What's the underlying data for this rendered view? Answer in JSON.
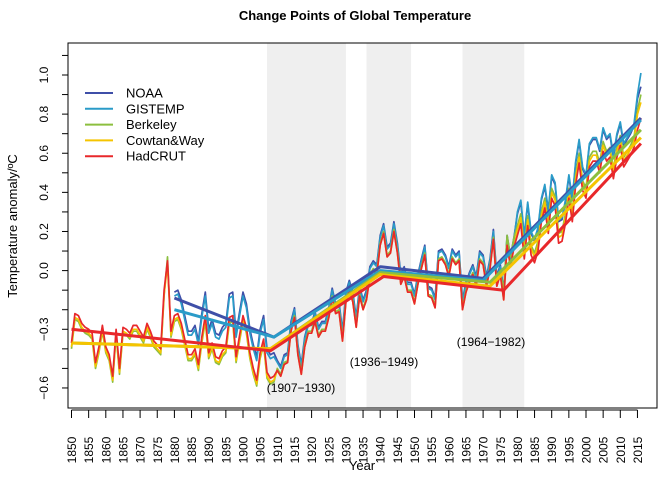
{
  "chart_data": {
    "type": "line",
    "title": "Change Points of Global Temperature",
    "xlabel": "Year",
    "ylabel": "Temperature anomaly/ºC",
    "xlim": [
      1850,
      2016
    ],
    "ylim": [
      -0.65,
      1.1
    ],
    "x_ticks": [
      1850,
      1855,
      1860,
      1865,
      1870,
      1875,
      1880,
      1885,
      1890,
      1895,
      1900,
      1905,
      1910,
      1915,
      1920,
      1925,
      1930,
      1935,
      1940,
      1945,
      1950,
      1955,
      1960,
      1965,
      1970,
      1975,
      1980,
      1985,
      1990,
      1995,
      2000,
      2005,
      2010,
      2015
    ],
    "y_ticks": [
      {
        "value": 1.0,
        "label": "1.0"
      },
      {
        "value": 0.8,
        "label": "0.8"
      },
      {
        "value": 0.6,
        "label": "0.6"
      },
      {
        "value": 0.4,
        "label": "0.4"
      },
      {
        "value": 0.2,
        "label": "0.2"
      },
      {
        "value": 0.0,
        "label": "0.0"
      },
      {
        "value": -0.3,
        "label": "−0.3"
      },
      {
        "value": -0.6,
        "label": "−0.6"
      }
    ],
    "grid": false,
    "legend_position": "top-left",
    "change_periods": [
      {
        "start": 1907,
        "end": 1930,
        "label": "(1907−1930)"
      },
      {
        "start": 1936,
        "end": 1949,
        "label": "(1936−1949)"
      },
      {
        "start": 1964,
        "end": 1982,
        "label": "(1964−1982)"
      }
    ],
    "series": [
      {
        "name": "NOAA",
        "color": "#3f4fa8",
        "start_year": 1880,
        "values": [
          -0.11,
          -0.1,
          -0.15,
          -0.23,
          -0.31,
          -0.31,
          -0.28,
          -0.36,
          -0.22,
          -0.11,
          -0.3,
          -0.25,
          -0.32,
          -0.33,
          -0.29,
          -0.27,
          -0.12,
          -0.11,
          -0.32,
          -0.21,
          -0.11,
          -0.17,
          -0.3,
          -0.38,
          -0.44,
          -0.3,
          -0.23,
          -0.4,
          -0.43,
          -0.42,
          -0.46,
          -0.49,
          -0.43,
          -0.42,
          -0.26,
          -0.19,
          -0.38,
          -0.48,
          -0.34,
          -0.27,
          -0.27,
          -0.21,
          -0.29,
          -0.26,
          -0.26,
          -0.19,
          -0.09,
          -0.17,
          -0.16,
          -0.31,
          -0.11,
          -0.05,
          -0.11,
          -0.24,
          -0.08,
          -0.15,
          -0.1,
          0.02,
          0.05,
          0.03,
          0.18,
          0.24,
          0.12,
          0.14,
          0.25,
          0.14,
          -0.02,
          0.02,
          -0.06,
          -0.06,
          -0.12,
          -0.02,
          0.06,
          0.13,
          -0.08,
          -0.09,
          -0.14,
          0.1,
          0.11,
          0.08,
          0.02,
          0.11,
          0.08,
          0.1,
          -0.15,
          -0.06,
          -0.01,
          0.03,
          -0.03,
          0.1,
          0.08,
          -0.03,
          0.06,
          0.21,
          -0.03,
          0.03,
          -0.1,
          0.18,
          0.07,
          0.17,
          0.29,
          0.35,
          0.17,
          0.34,
          0.19,
          0.15,
          0.21,
          0.36,
          0.43,
          0.3,
          0.48,
          0.44,
          0.25,
          0.26,
          0.35,
          0.48,
          0.36,
          0.55,
          0.66,
          0.52,
          0.48,
          0.64,
          0.67,
          0.67,
          0.61,
          0.72,
          0.67,
          0.69,
          0.58,
          0.69,
          0.75,
          0.64,
          0.67,
          0.7,
          0.74,
          0.88,
          0.94
        ],
        "fit": [
          [
            1880,
            -0.14
          ],
          [
            1909,
            -0.34
          ],
          [
            1940,
            0.02
          ],
          [
            1970,
            -0.04
          ],
          [
            2016,
            0.78
          ]
        ]
      },
      {
        "name": "GISTEMP",
        "color": "#2a9bc8",
        "start_year": 1880,
        "values": [
          -0.13,
          -0.12,
          -0.17,
          -0.25,
          -0.33,
          -0.33,
          -0.3,
          -0.38,
          -0.24,
          -0.13,
          -0.32,
          -0.27,
          -0.34,
          -0.35,
          -0.31,
          -0.29,
          -0.14,
          -0.13,
          -0.34,
          -0.23,
          -0.13,
          -0.19,
          -0.32,
          -0.4,
          -0.46,
          -0.32,
          -0.25,
          -0.42,
          -0.45,
          -0.44,
          -0.47,
          -0.5,
          -0.44,
          -0.43,
          -0.27,
          -0.2,
          -0.39,
          -0.49,
          -0.35,
          -0.28,
          -0.28,
          -0.22,
          -0.3,
          -0.27,
          -0.27,
          -0.2,
          -0.1,
          -0.18,
          -0.17,
          -0.32,
          -0.12,
          -0.06,
          -0.12,
          -0.25,
          -0.09,
          -0.16,
          -0.11,
          0.01,
          0.04,
          0.02,
          0.17,
          0.23,
          0.11,
          0.13,
          0.24,
          0.13,
          -0.03,
          0.01,
          -0.07,
          -0.07,
          -0.13,
          -0.03,
          0.05,
          0.12,
          -0.09,
          -0.1,
          -0.15,
          0.09,
          0.1,
          0.07,
          0.01,
          0.1,
          0.07,
          0.09,
          -0.16,
          -0.07,
          -0.02,
          0.02,
          -0.04,
          0.09,
          0.07,
          -0.04,
          0.05,
          0.2,
          -0.04,
          0.02,
          -0.11,
          0.17,
          0.06,
          0.16,
          0.3,
          0.36,
          0.18,
          0.35,
          0.2,
          0.16,
          0.22,
          0.37,
          0.44,
          0.31,
          0.49,
          0.45,
          0.26,
          0.27,
          0.36,
          0.49,
          0.37,
          0.56,
          0.67,
          0.53,
          0.49,
          0.65,
          0.68,
          0.68,
          0.62,
          0.73,
          0.68,
          0.7,
          0.59,
          0.7,
          0.76,
          0.65,
          0.68,
          0.71,
          0.75,
          0.9,
          1.01
        ],
        "fit": [
          [
            1880,
            -0.2
          ],
          [
            1909,
            -0.34
          ],
          [
            1940,
            0.0
          ],
          [
            1970,
            -0.05
          ],
          [
            2016,
            0.77
          ]
        ]
      },
      {
        "name": "Berkeley",
        "color": "#8cbf3f",
        "start_year": 1850,
        "values": [
          -0.4,
          -0.25,
          -0.26,
          -0.3,
          -0.32,
          -0.33,
          -0.35,
          -0.5,
          -0.42,
          -0.31,
          -0.42,
          -0.46,
          -0.57,
          -0.33,
          -0.53,
          -0.32,
          -0.33,
          -0.35,
          -0.31,
          -0.31,
          -0.34,
          -0.37,
          -0.3,
          -0.34,
          -0.39,
          -0.41,
          -0.43,
          -0.13,
          0.07,
          -0.34,
          -0.26,
          -0.25,
          -0.3,
          -0.38,
          -0.46,
          -0.46,
          -0.43,
          -0.51,
          -0.37,
          -0.26,
          -0.45,
          -0.4,
          -0.47,
          -0.48,
          -0.44,
          -0.42,
          -0.27,
          -0.26,
          -0.47,
          -0.36,
          -0.26,
          -0.32,
          -0.45,
          -0.53,
          -0.59,
          -0.45,
          -0.38,
          -0.55,
          -0.58,
          -0.57,
          -0.5,
          -0.53,
          -0.47,
          -0.46,
          -0.3,
          -0.23,
          -0.42,
          -0.52,
          -0.38,
          -0.31,
          -0.31,
          -0.25,
          -0.33,
          -0.3,
          -0.3,
          -0.23,
          -0.13,
          -0.21,
          -0.2,
          -0.35,
          -0.15,
          -0.09,
          -0.15,
          -0.28,
          -0.12,
          -0.19,
          -0.14,
          -0.02,
          0.01,
          -0.01,
          0.14,
          0.2,
          0.08,
          0.1,
          0.21,
          0.1,
          -0.06,
          -0.02,
          -0.1,
          -0.1,
          -0.16,
          -0.06,
          0.02,
          0.09,
          -0.12,
          -0.13,
          -0.18,
          0.06,
          0.07,
          0.04,
          -0.02,
          0.07,
          0.04,
          0.06,
          -0.19,
          -0.1,
          -0.05,
          -0.01,
          -0.07,
          0.06,
          0.04,
          -0.07,
          0.02,
          0.17,
          -0.07,
          -0.01,
          -0.1,
          0.18,
          0.07,
          0.17,
          0.23,
          0.29,
          0.11,
          0.28,
          0.13,
          0.09,
          0.15,
          0.3,
          0.37,
          0.24,
          0.42,
          0.38,
          0.19,
          0.2,
          0.29,
          0.42,
          0.3,
          0.49,
          0.6,
          0.46,
          0.42,
          0.58,
          0.61,
          0.61,
          0.55,
          0.66,
          0.61,
          0.63,
          0.52,
          0.63,
          0.69,
          0.58,
          0.61,
          0.64,
          0.68,
          0.82,
          0.9
        ],
        "fit": [
          [
            1850,
            -0.37
          ],
          [
            1908,
            -0.4
          ],
          [
            1940,
            -0.01
          ],
          [
            1972,
            -0.06
          ],
          [
            2016,
            0.72
          ]
        ]
      },
      {
        "name": "Cowtan&Way",
        "color": "#f5c400",
        "start_year": 1850,
        "values": [
          -0.39,
          -0.24,
          -0.25,
          -0.29,
          -0.31,
          -0.32,
          -0.34,
          -0.49,
          -0.41,
          -0.3,
          -0.41,
          -0.45,
          -0.56,
          -0.32,
          -0.52,
          -0.31,
          -0.32,
          -0.34,
          -0.3,
          -0.3,
          -0.33,
          -0.36,
          -0.29,
          -0.33,
          -0.38,
          -0.4,
          -0.42,
          -0.12,
          0.03,
          -0.33,
          -0.25,
          -0.24,
          -0.29,
          -0.37,
          -0.45,
          -0.45,
          -0.42,
          -0.5,
          -0.36,
          -0.25,
          -0.44,
          -0.39,
          -0.46,
          -0.47,
          -0.43,
          -0.41,
          -0.26,
          -0.25,
          -0.46,
          -0.35,
          -0.25,
          -0.31,
          -0.44,
          -0.52,
          -0.58,
          -0.44,
          -0.37,
          -0.54,
          -0.57,
          -0.56,
          -0.51,
          -0.54,
          -0.48,
          -0.47,
          -0.31,
          -0.24,
          -0.43,
          -0.53,
          -0.39,
          -0.32,
          -0.32,
          -0.26,
          -0.34,
          -0.31,
          -0.31,
          -0.24,
          -0.14,
          -0.22,
          -0.21,
          -0.36,
          -0.16,
          -0.1,
          -0.16,
          -0.29,
          -0.13,
          -0.2,
          -0.15,
          -0.03,
          0.0,
          -0.02,
          0.13,
          0.19,
          0.07,
          0.09,
          0.2,
          0.09,
          -0.07,
          -0.03,
          -0.11,
          -0.11,
          -0.17,
          -0.07,
          0.01,
          0.08,
          -0.13,
          -0.14,
          -0.19,
          0.05,
          0.06,
          0.03,
          -0.03,
          0.06,
          0.03,
          0.05,
          -0.2,
          -0.11,
          -0.06,
          -0.02,
          -0.08,
          0.05,
          0.03,
          -0.08,
          0.01,
          0.16,
          -0.08,
          -0.02,
          -0.15,
          0.13,
          0.02,
          0.12,
          0.21,
          0.27,
          0.09,
          0.26,
          0.11,
          0.07,
          0.13,
          0.28,
          0.35,
          0.22,
          0.4,
          0.36,
          0.17,
          0.18,
          0.27,
          0.4,
          0.28,
          0.47,
          0.58,
          0.44,
          0.4,
          0.56,
          0.59,
          0.59,
          0.53,
          0.64,
          0.59,
          0.61,
          0.5,
          0.61,
          0.67,
          0.56,
          0.59,
          0.62,
          0.66,
          0.8,
          0.86
        ],
        "fit": [
          [
            1850,
            -0.37
          ],
          [
            1908,
            -0.4
          ],
          [
            1940,
            -0.02
          ],
          [
            1972,
            -0.08
          ],
          [
            2016,
            0.68
          ]
        ]
      },
      {
        "name": "HadCRUT",
        "color": "#e8282b",
        "start_year": 1850,
        "values": [
          -0.37,
          -0.22,
          -0.23,
          -0.27,
          -0.29,
          -0.3,
          -0.32,
          -0.47,
          -0.39,
          -0.28,
          -0.39,
          -0.43,
          -0.54,
          -0.3,
          -0.5,
          -0.29,
          -0.3,
          -0.32,
          -0.28,
          -0.28,
          -0.31,
          -0.34,
          -0.27,
          -0.31,
          -0.36,
          -0.38,
          -0.4,
          -0.1,
          0.05,
          -0.31,
          -0.23,
          -0.22,
          -0.27,
          -0.35,
          -0.43,
          -0.43,
          -0.4,
          -0.48,
          -0.34,
          -0.23,
          -0.42,
          -0.37,
          -0.44,
          -0.45,
          -0.41,
          -0.39,
          -0.24,
          -0.23,
          -0.44,
          -0.33,
          -0.23,
          -0.29,
          -0.42,
          -0.5,
          -0.56,
          -0.42,
          -0.35,
          -0.52,
          -0.55,
          -0.54,
          -0.51,
          -0.54,
          -0.48,
          -0.47,
          -0.31,
          -0.24,
          -0.43,
          -0.53,
          -0.39,
          -0.32,
          -0.32,
          -0.26,
          -0.34,
          -0.31,
          -0.31,
          -0.24,
          -0.14,
          -0.22,
          -0.21,
          -0.36,
          -0.16,
          -0.1,
          -0.16,
          -0.29,
          -0.13,
          -0.2,
          -0.15,
          -0.03,
          0.0,
          -0.02,
          0.13,
          0.19,
          0.07,
          0.09,
          0.2,
          0.09,
          -0.07,
          -0.03,
          -0.11,
          -0.11,
          -0.17,
          -0.07,
          0.01,
          0.08,
          -0.13,
          -0.14,
          -0.19,
          0.05,
          0.06,
          0.03,
          -0.03,
          0.06,
          0.03,
          0.05,
          -0.2,
          -0.11,
          -0.06,
          -0.02,
          -0.08,
          0.05,
          0.03,
          -0.08,
          0.01,
          0.16,
          -0.08,
          -0.02,
          -0.15,
          0.13,
          0.02,
          0.12,
          0.18,
          0.24,
          0.06,
          0.23,
          0.08,
          0.04,
          0.1,
          0.25,
          0.32,
          0.19,
          0.37,
          0.33,
          0.14,
          0.15,
          0.24,
          0.37,
          0.25,
          0.44,
          0.55,
          0.41,
          0.37,
          0.53,
          0.56,
          0.56,
          0.5,
          0.61,
          0.56,
          0.58,
          0.47,
          0.58,
          0.64,
          0.53,
          0.56,
          0.59,
          0.63,
          0.72,
          0.78
        ],
        "fit": [
          [
            1850,
            -0.3
          ],
          [
            1908,
            -0.41
          ],
          [
            1941,
            -0.03
          ],
          [
            1976,
            -0.1
          ],
          [
            2016,
            0.65
          ]
        ]
      }
    ]
  }
}
